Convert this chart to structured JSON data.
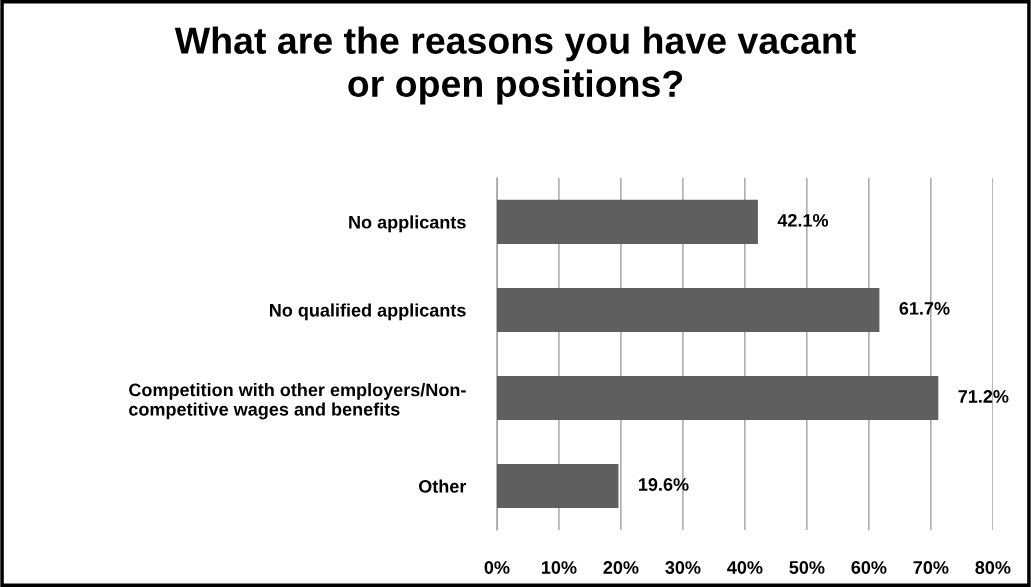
{
  "chart_data": {
    "type": "bar",
    "orientation": "horizontal",
    "title": "What are the reasons you have vacant\nor open positions?",
    "categories": [
      "No applicants",
      "No qualified applicants",
      "Competition with other employers/Non-\ncompetitive wages and benefits",
      "Other"
    ],
    "values": [
      42.1,
      61.7,
      71.2,
      19.6
    ],
    "value_labels": [
      "42.1%",
      "61.7%",
      "71.2%",
      "19.6%"
    ],
    "color": "#5f5f5f",
    "xlim": [
      0,
      80
    ],
    "xticks": [
      {
        "value": 0,
        "label": "0%"
      },
      {
        "value": 10,
        "label": "10%"
      },
      {
        "value": 20,
        "label": "20%"
      },
      {
        "value": 30,
        "label": "30%"
      },
      {
        "value": 40,
        "label": "40%"
      },
      {
        "value": 50,
        "label": "50%"
      },
      {
        "value": 60,
        "label": "60%"
      },
      {
        "value": 70,
        "label": "70%"
      },
      {
        "value": 80,
        "label": "80%"
      }
    ],
    "grid": "x",
    "legend": false
  }
}
